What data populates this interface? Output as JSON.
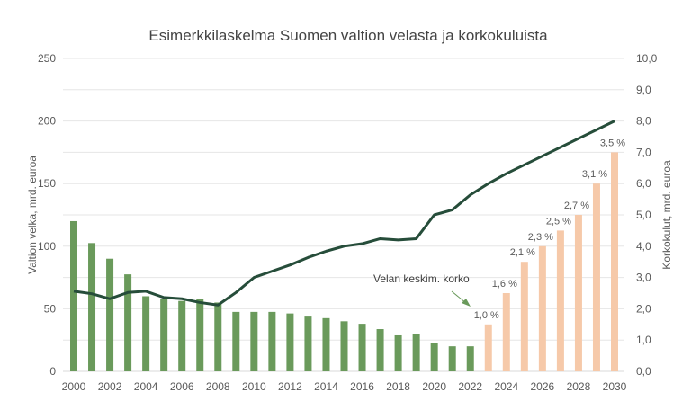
{
  "chart_data": {
    "type": "bar+line",
    "title": "Esimerkkilaskelma Suomen valtion velasta ja korkokuluista",
    "ylabel_left": "Valtion velka, mrd. euroa",
    "ylabel_right": "Korkokulut, mrd. euroa",
    "ylim_left": [
      0,
      250
    ],
    "ylim_right": [
      0,
      10
    ],
    "yticks_left": [
      "0",
      "50",
      "100",
      "150",
      "200",
      "250"
    ],
    "yticks_right": [
      "0,0",
      "1,0",
      "2,0",
      "3,0",
      "4,0",
      "5,0",
      "6,0",
      "7,0",
      "8,0",
      "9,0",
      "10,0"
    ],
    "x": [
      2000,
      2001,
      2002,
      2003,
      2004,
      2005,
      2006,
      2007,
      2008,
      2009,
      2010,
      2011,
      2012,
      2013,
      2014,
      2015,
      2016,
      2017,
      2018,
      2019,
      2020,
      2021,
      2022,
      2023,
      2024,
      2025,
      2026,
      2027,
      2028,
      2029,
      2030
    ],
    "xtick_labels": [
      "2000",
      "2002",
      "2004",
      "2006",
      "2008",
      "2010",
      "2012",
      "2014",
      "2016",
      "2018",
      "2020",
      "2022",
      "2024",
      "2026",
      "2028",
      "2030"
    ],
    "series": [
      {
        "name": "Korkokulut",
        "axis": "right",
        "kind": "bar",
        "colors": {
          "actual": "#6a9a5b",
          "forecast": "#f6c9a9"
        },
        "forecast_from": 2023,
        "values": [
          4.8,
          4.1,
          3.6,
          3.1,
          2.4,
          2.3,
          2.25,
          2.3,
          2.2,
          1.9,
          1.9,
          1.9,
          1.85,
          1.75,
          1.7,
          1.6,
          1.52,
          1.35,
          1.15,
          1.2,
          0.9,
          0.8,
          0.8,
          1.5,
          2.5,
          3.5,
          4.0,
          4.5,
          5.0,
          6.0,
          7.0
        ]
      },
      {
        "name": "Valtion velka",
        "axis": "left",
        "kind": "line",
        "color": "#264d3a",
        "values": [
          64,
          62,
          58,
          63,
          64,
          59,
          58,
          55,
          53,
          63,
          75,
          80,
          85,
          91,
          96,
          100,
          102,
          106,
          105,
          106,
          125,
          129,
          141,
          150,
          158,
          165,
          172,
          179,
          186,
          193,
          200
        ]
      }
    ],
    "data_labels": [
      {
        "x": 2023,
        "text": "1,0 %"
      },
      {
        "x": 2024,
        "text": "1,6 %"
      },
      {
        "x": 2025,
        "text": "2,1 %"
      },
      {
        "x": 2026,
        "text": "2,3 %"
      },
      {
        "x": 2027,
        "text": "2,5 %"
      },
      {
        "x": 2028,
        "text": "2,7 %"
      },
      {
        "x": 2029,
        "text": "3,1 %"
      },
      {
        "x": 2030,
        "text": "3,5 %"
      }
    ],
    "annotation": "Velan keskim. korko"
  }
}
